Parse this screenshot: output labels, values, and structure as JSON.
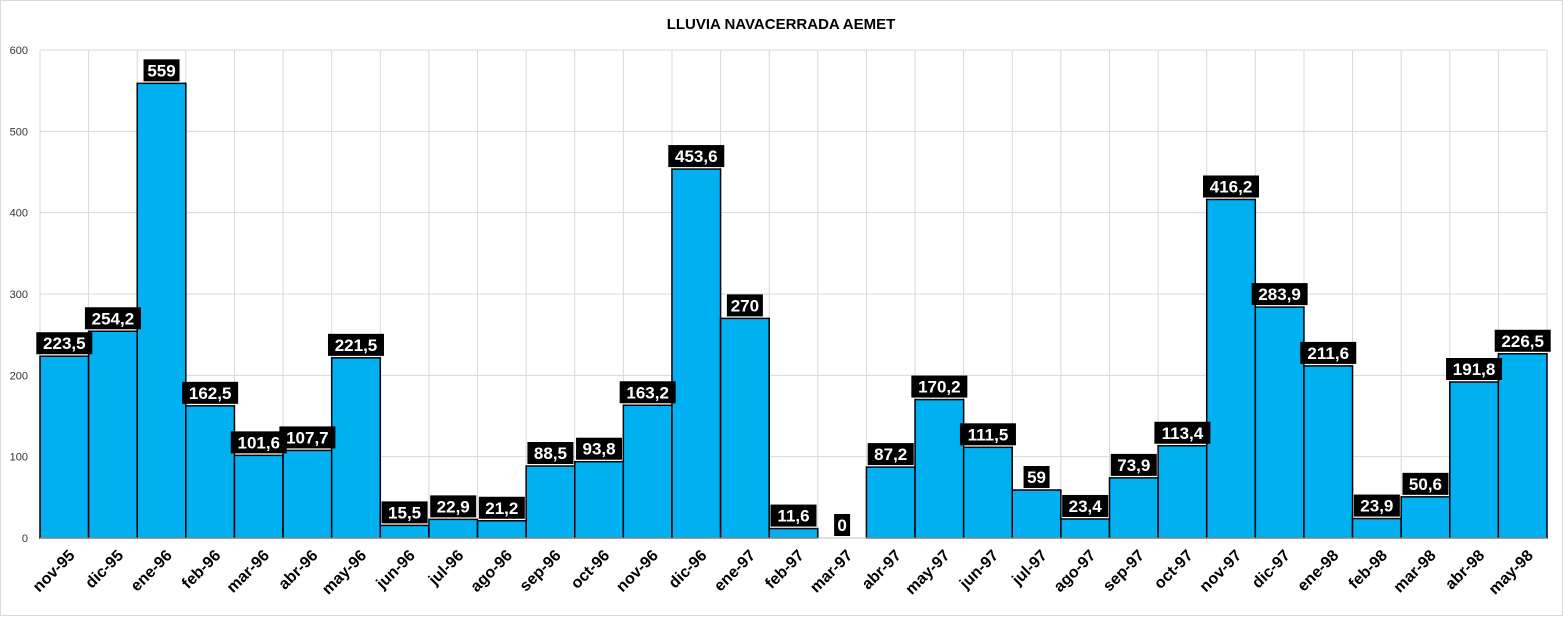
{
  "chart_data": {
    "type": "bar",
    "title": "LLUVIA NAVACERRADA AEMET",
    "xlabel": "",
    "ylabel": "",
    "ylim": [
      0,
      600
    ],
    "yticks": [
      "0",
      "100",
      "200",
      "300",
      "400",
      "500",
      "600"
    ],
    "ytick_values": [
      0,
      100,
      200,
      300,
      400,
      500,
      600
    ],
    "grid": true,
    "legend": "none",
    "bar_color": "#00B0F0",
    "bar_edge_color": "#000000",
    "label_bg_color": "#000000",
    "label_text_color": "#ffffff",
    "categories": [
      "nov-95",
      "dic-95",
      "ene-96",
      "feb-96",
      "mar-96",
      "abr-96",
      "may-96",
      "jun-96",
      "jul-96",
      "ago-96",
      "sep-96",
      "oct-96",
      "nov-96",
      "dic-96",
      "ene-97",
      "feb-97",
      "mar-97",
      "abr-97",
      "may-97",
      "jun-97",
      "jul-97",
      "ago-97",
      "sep-97",
      "oct-97",
      "nov-97",
      "dic-97",
      "ene-98",
      "feb-98",
      "mar-98",
      "abr-98",
      "may-98"
    ],
    "values": [
      223.5,
      254.2,
      559,
      162.5,
      101.6,
      107.7,
      221.5,
      15.5,
      22.9,
      21.2,
      88.5,
      93.8,
      163.2,
      453.6,
      270,
      11.6,
      0,
      87.2,
      170.2,
      111.5,
      59,
      23.4,
      73.9,
      113.4,
      416.2,
      283.9,
      211.6,
      23.9,
      50.6,
      191.8,
      226.5
    ],
    "data_labels": [
      "223,5",
      "254,2",
      "559",
      "162,5",
      "101,6",
      "107,7",
      "221,5",
      "15,5",
      "22,9",
      "21,2",
      "88,5",
      "93,8",
      "163,2",
      "453,6",
      "270",
      "11,6",
      "0",
      "87,2",
      "170,2",
      "111,5",
      "59",
      "23,4",
      "73,9",
      "113,4",
      "416,2",
      "283,9",
      "211,6",
      "23,9",
      "50,6",
      "191,8",
      "226,5"
    ]
  }
}
